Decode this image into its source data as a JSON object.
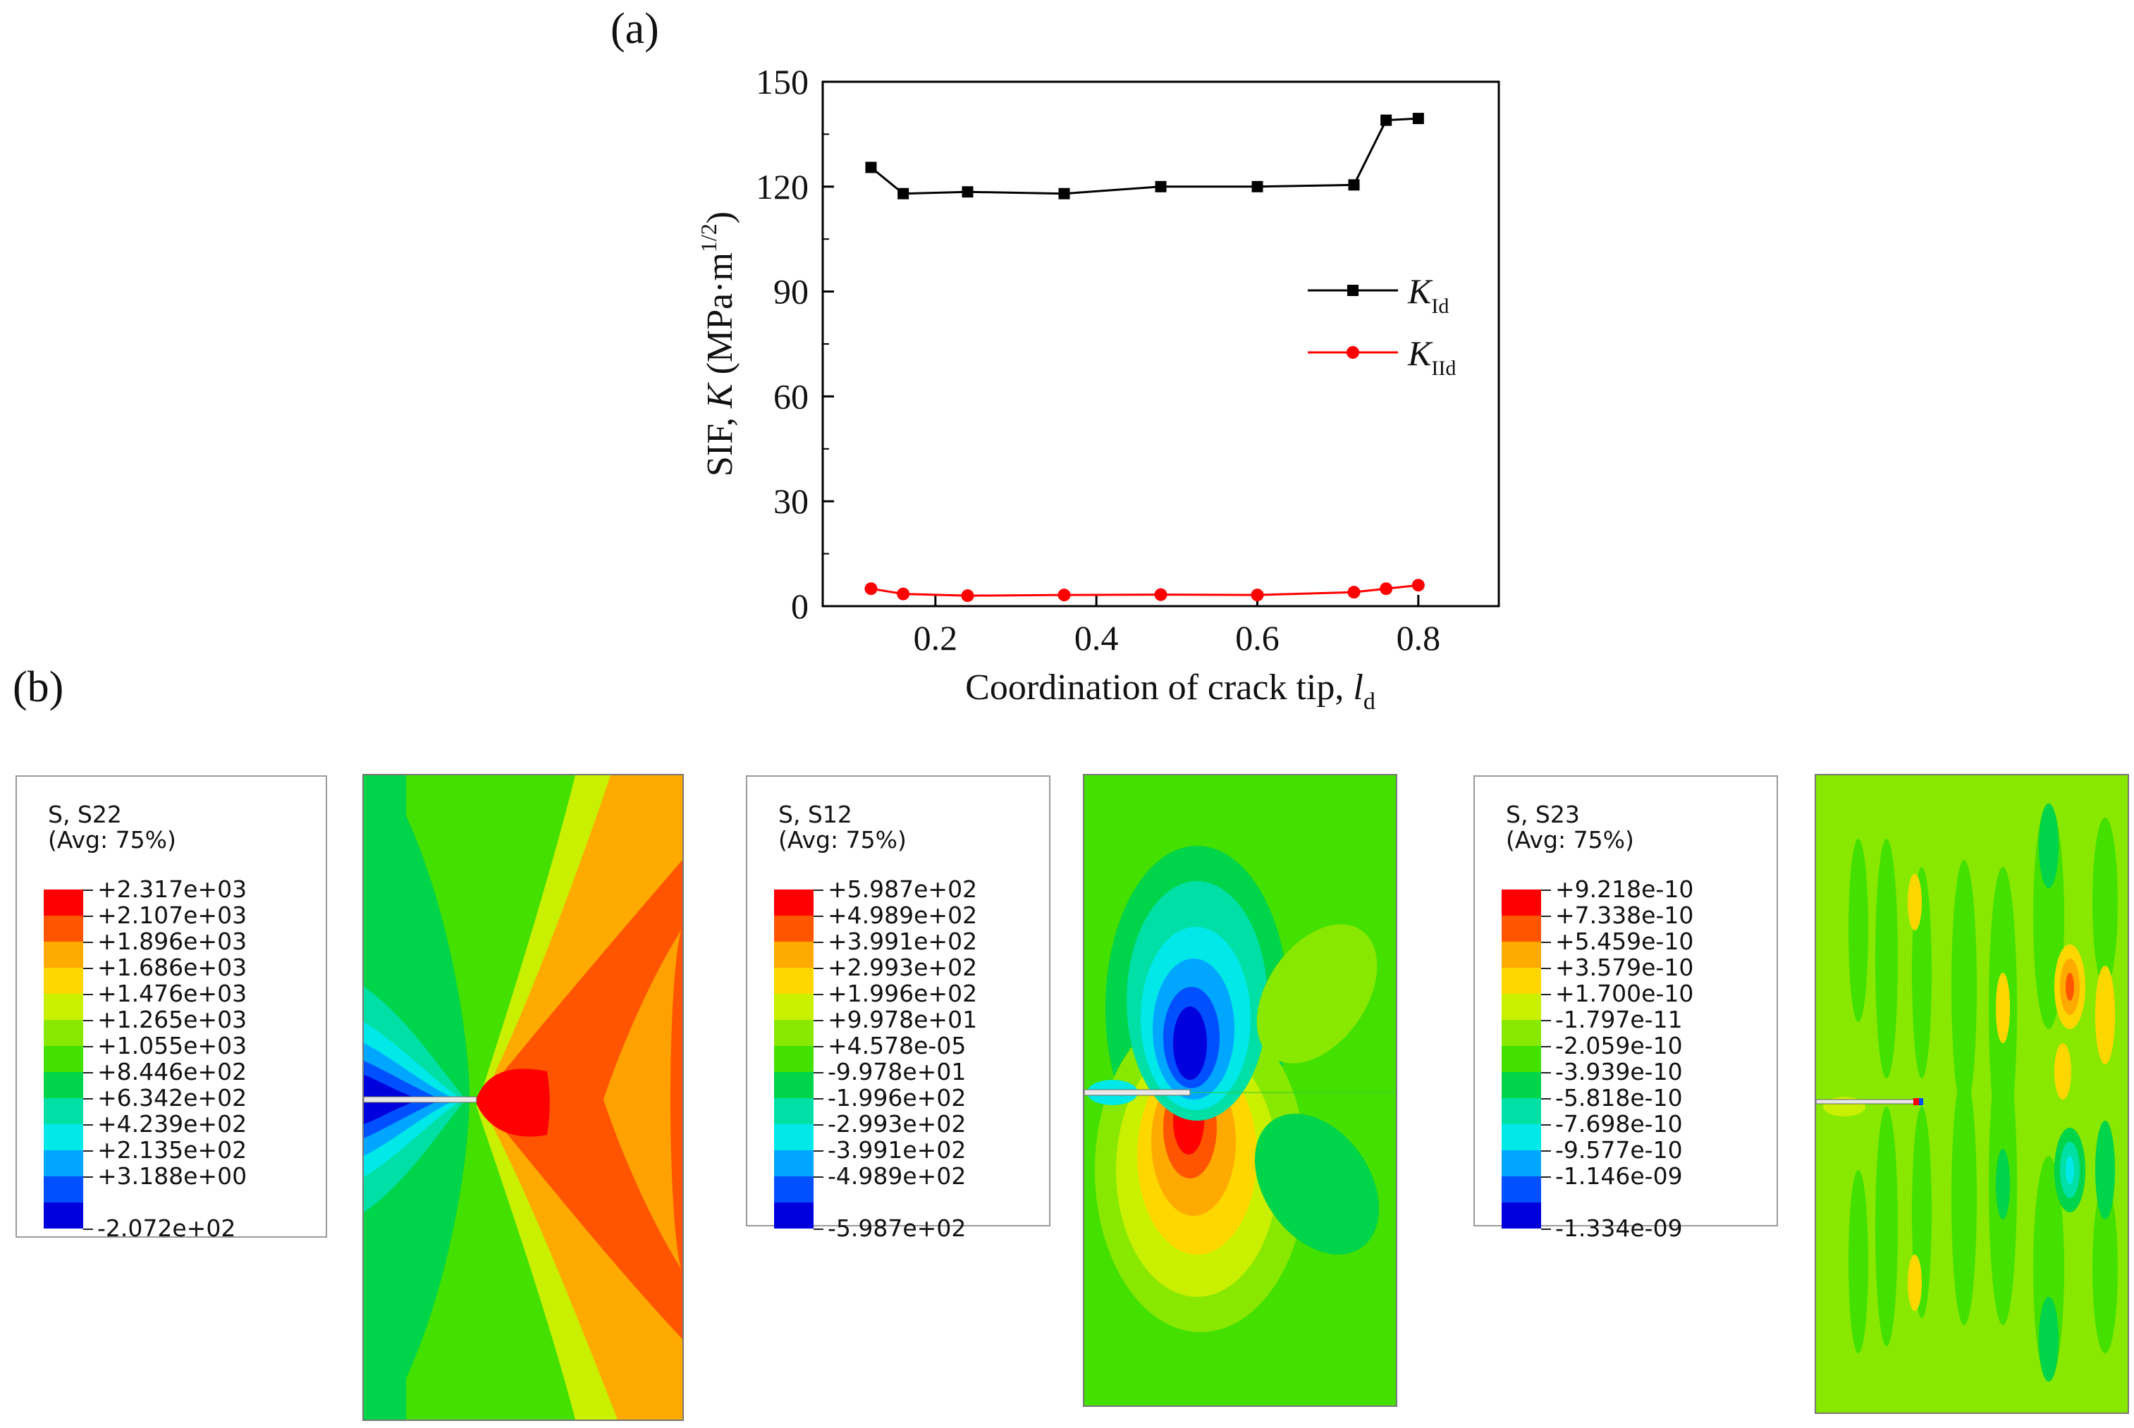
{
  "panel_a_label": "(a)",
  "panel_b_label": "(b)",
  "chart_data": {
    "type": "line",
    "xlabel": "Coordination of crack tip, l_d",
    "xlabel_main": "Coordination of crack tip, ",
    "xlabel_var": "l",
    "xlabel_sub": "d",
    "ylabel": "SIF, K (MPa·m^1/2)",
    "ylabel_main": "SIF, ",
    "ylabel_var": "K",
    "ylabel_unit": " (MPa·m",
    "ylabel_sup": "1/2",
    "ylabel_close": ")",
    "xlim": [
      0.06,
      0.9
    ],
    "ylim": [
      0,
      150
    ],
    "xticks": [
      0.2,
      0.4,
      0.6,
      0.8
    ],
    "xtick_labels": [
      "0.2",
      "0.4",
      "0.6",
      "0.8"
    ],
    "yticks": [
      0,
      30,
      60,
      90,
      120,
      150
    ],
    "ytick_labels": [
      "0",
      "30",
      "60",
      "90",
      "120",
      "150"
    ],
    "legend_position": "right-middle",
    "series": [
      {
        "name": "K_Id",
        "label_var": "K",
        "label_sub": "Id",
        "color": "#000000",
        "marker": "square",
        "x": [
          0.12,
          0.16,
          0.24,
          0.36,
          0.48,
          0.6,
          0.72,
          0.76,
          0.8
        ],
        "y": [
          125.5,
          118,
          118.5,
          118,
          120,
          120,
          120.5,
          139,
          139.5
        ]
      },
      {
        "name": "K_IId",
        "label_var": "K",
        "label_sub": "IId",
        "color": "#ff0000",
        "marker": "circle",
        "x": [
          0.12,
          0.16,
          0.24,
          0.36,
          0.48,
          0.6,
          0.72,
          0.76,
          0.8
        ],
        "y": [
          5,
          3.5,
          3,
          3.2,
          3.3,
          3.2,
          4,
          5,
          6
        ]
      }
    ]
  },
  "contour_plots": [
    {
      "title": "S, S22",
      "subtitle": "(Avg: 75%)",
      "colors": [
        "#ff0000",
        "#ff5500",
        "#ffaa00",
        "#ffd700",
        "#c8f000",
        "#88e800",
        "#44e000",
        "#00d44a",
        "#00dfa5",
        "#00e8e8",
        "#00a6ff",
        "#0050ff",
        "#0000dd"
      ],
      "values": [
        "+2.317e+03",
        "+2.107e+03",
        "+1.896e+03",
        "+1.686e+03",
        "+1.476e+03",
        "+1.265e+03",
        "+1.055e+03",
        "+8.446e+02",
        "+6.342e+02",
        "+4.239e+02",
        "+2.135e+02",
        "+3.188e+00",
        "-2.072e+02"
      ]
    },
    {
      "title": "S, S12",
      "subtitle": "(Avg: 75%)",
      "colors": [
        "#ff0000",
        "#ff5500",
        "#ffaa00",
        "#ffd700",
        "#c8f000",
        "#88e800",
        "#44e000",
        "#00d44a",
        "#00dfa5",
        "#00e8e8",
        "#00a6ff",
        "#0050ff",
        "#0000dd"
      ],
      "values": [
        "+5.987e+02",
        "+4.989e+02",
        "+3.991e+02",
        "+2.993e+02",
        "+1.996e+02",
        "+9.978e+01",
        "+4.578e-05",
        "-9.978e+01",
        "-1.996e+02",
        "-2.993e+02",
        "-3.991e+02",
        "-4.989e+02",
        "-5.987e+02"
      ]
    },
    {
      "title": "S, S23",
      "subtitle": "(Avg: 75%)",
      "colors": [
        "#ff0000",
        "#ff5500",
        "#ffaa00",
        "#ffd700",
        "#c8f000",
        "#88e800",
        "#44e000",
        "#00d44a",
        "#00dfa5",
        "#00e8e8",
        "#00a6ff",
        "#0050ff",
        "#0000dd"
      ],
      "values": [
        "+9.218e-10",
        "+7.338e-10",
        "+5.459e-10",
        "+3.579e-10",
        "+1.700e-10",
        "-1.797e-11",
        "-2.059e-10",
        "-3.939e-10",
        "-5.818e-10",
        "-7.698e-10",
        "-9.577e-10",
        "-1.146e-09",
        "-1.334e-09"
      ]
    }
  ]
}
